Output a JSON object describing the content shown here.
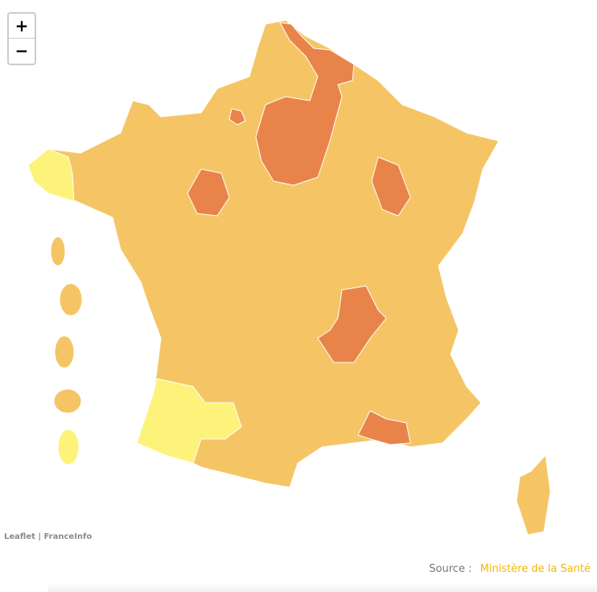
{
  "zoom_controls": {
    "zoom_in": "+",
    "zoom_out": "−"
  },
  "attribution": {
    "leaflet": "Leaflet",
    "separator": "|",
    "provider": "FranceInfo"
  },
  "source": {
    "label": "Source :",
    "name": "Ministère de la Santé"
  }
}
